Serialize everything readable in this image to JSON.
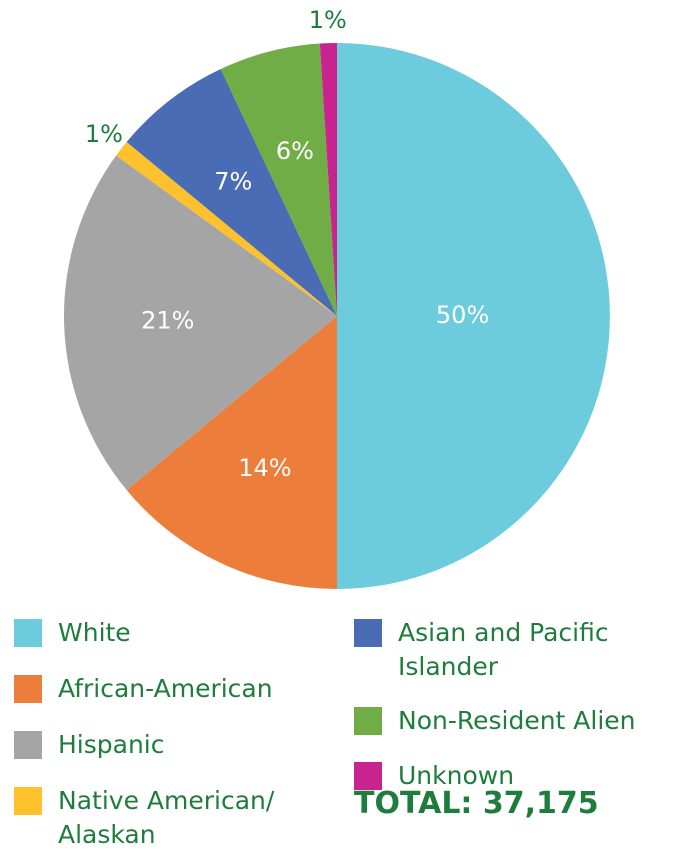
{
  "chart_data": {
    "type": "pie",
    "categories": [
      "White",
      "African-American",
      "Hispanic",
      "Native American/ Alaskan",
      "Asian and Pacific Islander",
      "Non-Resident Alien",
      "Unknown"
    ],
    "values": [
      50,
      14,
      21,
      1,
      7,
      6,
      1
    ],
    "value_labels": [
      "50%",
      "14%",
      "21%",
      "1%",
      "7%",
      "6%",
      "1%"
    ],
    "colors": [
      "#6ccbdc",
      "#ed7d3a",
      "#a5a5a5",
      "#fcc12d",
      "#4a6cb4",
      "#70ad47",
      "#c8238f"
    ],
    "annotation": "TOTAL: 37,175"
  }
}
